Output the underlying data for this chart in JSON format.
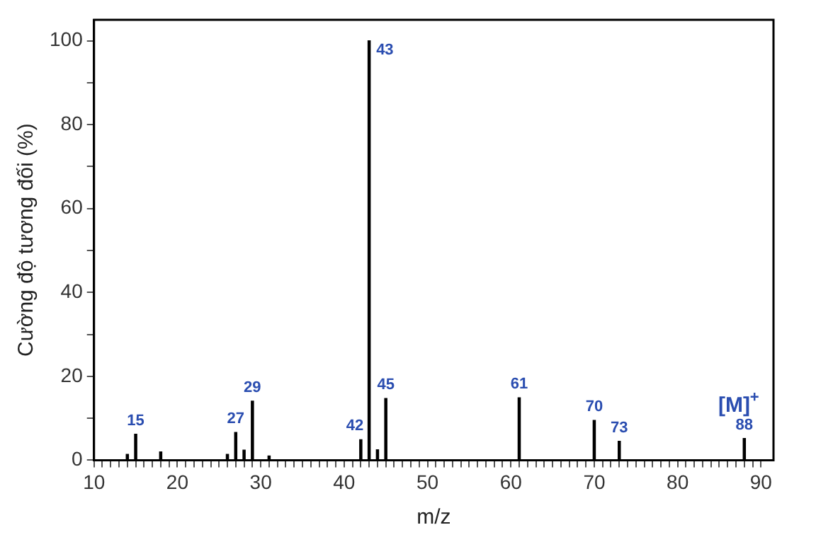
{
  "chart_data": {
    "type": "bar",
    "xlabel": "m/z",
    "ylabel": "Cường độ tương đối (%)",
    "x": [
      14,
      15,
      18,
      26,
      27,
      28,
      29,
      31,
      42,
      43,
      44,
      45,
      61,
      70,
      73,
      88
    ],
    "series": [
      {
        "color": "#000000",
        "values": [
          1.4,
          6.2,
          2,
          1.4,
          6.6,
          2.4,
          14.1,
          1,
          4.9,
          100,
          2.5,
          14.7,
          14.9,
          9.5,
          4.5,
          5.2
        ]
      }
    ],
    "annotations": [
      {
        "text": "15",
        "x": 15,
        "y": 6.2
      },
      {
        "text": "27",
        "x": 27,
        "y": 6.6
      },
      {
        "text": "29",
        "x": 29,
        "y": 14.1
      },
      {
        "text": "42",
        "x": 42,
        "y": 4.9
      },
      {
        "text": "43",
        "x": 43,
        "y": 100
      },
      {
        "text": "45",
        "x": 45,
        "y": 14.7
      },
      {
        "text": "61",
        "x": 61,
        "y": 14.9
      },
      {
        "text": "70",
        "x": 70,
        "y": 9.5
      },
      {
        "text": "73",
        "x": 73,
        "y": 4.5
      },
      {
        "text": "88",
        "x": 88,
        "y": 5.2
      },
      {
        "text": "[M]$^{+}$",
        "x": 88,
        "y": 5.2
      }
    ],
    "xlim": [
      10,
      91.5
    ],
    "xticks": [
      10,
      {
        "value": 11,
        "label": null
      },
      {
        "value": 12,
        "label": null
      },
      {
        "value": 13,
        "label": null
      },
      {
        "value": 14,
        "label": null
      },
      {
        "value": 15,
        "label": null
      },
      {
        "value": 16,
        "label": null
      },
      {
        "value": 17,
        "label": null
      },
      {
        "value": 18,
        "label": null
      },
      {
        "value": 19,
        "label": null
      },
      20,
      {
        "value": 21,
        "label": null
      },
      {
        "value": 22,
        "label": null
      },
      {
        "value": 23,
        "label": null
      },
      {
        "value": 24,
        "label": null
      },
      {
        "value": 25,
        "label": null
      },
      {
        "value": 26,
        "label": null
      },
      {
        "value": 27,
        "label": null
      },
      {
        "value": 28,
        "label": null
      },
      {
        "value": 29,
        "label": null
      },
      30,
      {
        "value": 31,
        "label": null
      },
      {
        "value": 32,
        "label": null
      },
      {
        "value": 33,
        "label": null
      },
      {
        "value": 34,
        "label": null
      },
      {
        "value": 35,
        "label": null
      },
      {
        "value": 36,
        "label": null
      },
      {
        "value": 37,
        "label": null
      },
      {
        "value": 38,
        "label": null
      },
      {
        "value": 39,
        "label": null
      },
      40,
      {
        "value": 41,
        "label": null
      },
      {
        "value": 42,
        "label": null
      },
      {
        "value": 43,
        "label": null
      },
      {
        "value": 44,
        "label": null
      },
      {
        "value": 45,
        "label": null
      },
      {
        "value": 46,
        "label": null
      },
      {
        "value": 47,
        "label": null
      },
      {
        "value": 48,
        "label": null
      },
      {
        "value": 49,
        "label": null
      },
      50,
      {
        "value": 51,
        "label": null
      },
      {
        "value": 52,
        "label": null
      },
      {
        "value": 53,
        "label": null
      },
      {
        "value": 54,
        "label": null
      },
      {
        "value": 55,
        "label": null
      },
      {
        "value": 56,
        "label": null
      },
      {
        "value": 57,
        "label": null
      },
      {
        "value": 58,
        "label": null
      },
      {
        "value": 59,
        "label": null
      },
      60,
      {
        "value": 61,
        "label": null
      },
      {
        "value": 62,
        "label": null
      },
      {
        "value": 63,
        "label": null
      },
      {
        "value": 64,
        "label": null
      },
      {
        "value": 65,
        "label": null
      },
      {
        "value": 66,
        "label": null
      },
      {
        "value": 67,
        "label": null
      },
      {
        "value": 68,
        "label": null
      },
      {
        "value": 69,
        "label": null
      },
      70,
      {
        "value": 71,
        "label": null
      },
      {
        "value": 72,
        "label": null
      },
      {
        "value": 73,
        "label": null
      },
      {
        "value": 74,
        "label": null
      },
      {
        "value": 75,
        "label": null
      },
      {
        "value": 76,
        "label": null
      },
      {
        "value": 77,
        "label": null
      },
      {
        "value": 78,
        "label": null
      },
      {
        "value": 79,
        "label": null
      },
      80,
      {
        "value": 81,
        "label": null
      },
      {
        "value": 82,
        "label": null
      },
      {
        "value": 83,
        "label": null
      },
      {
        "value": 84,
        "label": null
      },
      {
        "value": 85,
        "label": null
      },
      {
        "value": 86,
        "label": null
      },
      {
        "value": 87,
        "label": null
      },
      {
        "value": 88,
        "label": null
      },
      {
        "value": 89,
        "label": null
      },
      90
    ],
    "ylim": [
      0,
      105
    ],
    "yticks": [
      0,
      {
        "value": 10,
        "label": null
      },
      20,
      {
        "value": 30,
        "label": null
      },
      40,
      {
        "value": 50,
        "label": null
      },
      60,
      {
        "value": 70,
        "label": null
      },
      80,
      {
        "value": 90,
        "label": null
      },
      100
    ],
    "grid": false,
    "legend": false
  }
}
